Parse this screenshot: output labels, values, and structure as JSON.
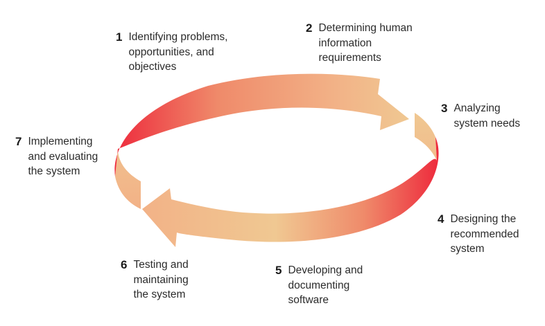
{
  "diagram": {
    "colors": {
      "red": "#ee2b3d",
      "peach": "#f2b287",
      "light_peach": "#f0c892",
      "salmon": "#ef8a6a"
    },
    "steps": [
      {
        "number": "1",
        "lines": [
          "Identifying problems,",
          "opportunities, and",
          "objectives"
        ]
      },
      {
        "number": "2",
        "lines": [
          "Determining human",
          "information",
          "requirements"
        ]
      },
      {
        "number": "3",
        "lines": [
          "Analyzing",
          "system needs"
        ]
      },
      {
        "number": "4",
        "lines": [
          "Designing the",
          "recommended",
          "system"
        ]
      },
      {
        "number": "5",
        "lines": [
          "Developing and",
          "documenting",
          "software"
        ]
      },
      {
        "number": "6",
        "lines": [
          "Testing and",
          "maintaining",
          "the system"
        ]
      },
      {
        "number": "7",
        "lines": [
          "Implementing",
          "and evaluating",
          "the system"
        ]
      }
    ]
  }
}
